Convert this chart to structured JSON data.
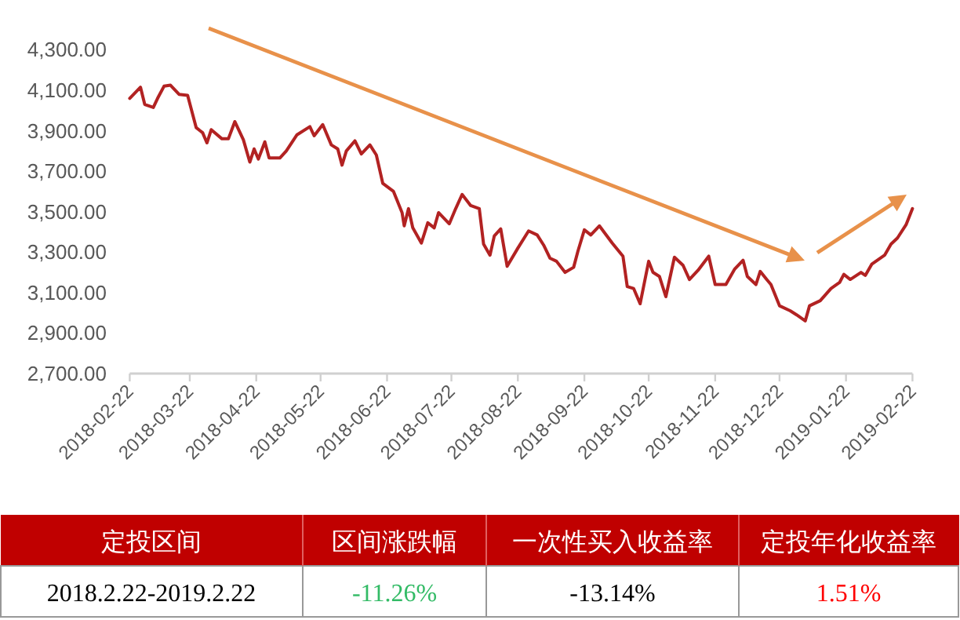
{
  "chart_data": {
    "type": "line",
    "x": [
      "2018-02-22",
      "2018-02-27",
      "2018-03-01",
      "2018-03-05",
      "2018-03-07",
      "2018-03-10",
      "2018-03-13",
      "2018-03-17",
      "2018-03-21",
      "2018-03-25",
      "2018-03-28",
      "2018-03-30",
      "2018-04-01",
      "2018-04-06",
      "2018-04-09",
      "2018-04-12",
      "2018-04-16",
      "2018-04-19",
      "2018-04-21",
      "2018-04-23",
      "2018-04-26",
      "2018-04-28",
      "2018-05-03",
      "2018-05-06",
      "2018-05-11",
      "2018-05-17",
      "2018-05-19",
      "2018-05-23",
      "2018-05-27",
      "2018-05-30",
      "2018-06-01",
      "2018-06-03",
      "2018-06-07",
      "2018-06-10",
      "2018-06-14",
      "2018-06-17",
      "2018-06-20",
      "2018-06-25",
      "2018-06-29",
      "2018-06-30",
      "2018-07-02",
      "2018-07-04",
      "2018-07-08",
      "2018-07-11",
      "2018-07-14",
      "2018-07-16",
      "2018-07-21",
      "2018-07-24",
      "2018-07-27",
      "2018-07-31",
      "2018-08-04",
      "2018-08-06",
      "2018-08-09",
      "2018-08-11",
      "2018-08-14",
      "2018-08-17",
      "2018-08-22",
      "2018-08-27",
      "2018-08-31",
      "2018-09-03",
      "2018-09-06",
      "2018-09-09",
      "2018-09-13",
      "2018-09-17",
      "2018-09-19",
      "2018-09-22",
      "2018-09-25",
      "2018-09-29",
      "2018-10-05",
      "2018-10-10",
      "2018-10-12",
      "2018-10-15",
      "2018-10-18",
      "2018-10-22",
      "2018-10-24",
      "2018-10-27",
      "2018-10-30",
      "2018-11-03",
      "2018-11-07",
      "2018-11-10",
      "2018-11-14",
      "2018-11-19",
      "2018-11-22",
      "2018-11-27",
      "2018-12-01",
      "2018-12-05",
      "2018-12-07",
      "2018-12-11",
      "2018-12-13",
      "2018-12-16",
      "2018-12-18",
      "2018-12-22",
      "2018-12-27",
      "2018-12-30",
      "2019-01-03",
      "2019-01-05",
      "2019-01-10",
      "2019-01-15",
      "2019-01-19",
      "2019-01-21",
      "2019-01-24",
      "2019-01-29",
      "2019-01-31",
      "2019-02-03",
      "2019-02-09",
      "2019-02-12",
      "2019-02-15",
      "2019-02-19",
      "2019-02-22"
    ],
    "series": [
      {
        "color": "#b22222",
        "values": [
          4060,
          4115,
          4030,
          4015,
          4060,
          4120,
          4125,
          4080,
          4075,
          3915,
          3890,
          3840,
          3905,
          3860,
          3860,
          3945,
          3855,
          3745,
          3810,
          3760,
          3845,
          3765,
          3765,
          3800,
          3880,
          3920,
          3875,
          3930,
          3830,
          3810,
          3730,
          3800,
          3850,
          3785,
          3830,
          3780,
          3640,
          3600,
          3495,
          3430,
          3515,
          3420,
          3345,
          3445,
          3420,
          3495,
          3440,
          3515,
          3585,
          3530,
          3515,
          3340,
          3285,
          3380,
          3415,
          3230,
          3320,
          3405,
          3385,
          3335,
          3270,
          3255,
          3200,
          3225,
          3305,
          3410,
          3385,
          3430,
          3345,
          3280,
          3130,
          3120,
          3045,
          3255,
          3200,
          3180,
          3080,
          3275,
          3235,
          3165,
          3210,
          3280,
          3140,
          3140,
          3215,
          3260,
          3180,
          3140,
          3205,
          3165,
          3140,
          3035,
          3010,
          2990,
          2960,
          3035,
          3060,
          3120,
          3150,
          3190,
          3165,
          3200,
          3185,
          3240,
          3285,
          3340,
          3370,
          3435,
          3515
        ]
      }
    ],
    "ylim": [
      2700,
      4300
    ],
    "yticks": [
      {
        "value": 2700,
        "label": "2,700.00"
      },
      {
        "value": 2900,
        "label": "2,900.00"
      },
      {
        "value": 3100,
        "label": "3,100.00"
      },
      {
        "value": 3300,
        "label": "3,300.00"
      },
      {
        "value": 3500,
        "label": "3,500.00"
      },
      {
        "value": 3700,
        "label": "3,700.00"
      },
      {
        "value": 3900,
        "label": "3,900.00"
      },
      {
        "value": 4100,
        "label": "4,100.00"
      },
      {
        "value": 4300,
        "label": "4,300.00"
      }
    ],
    "xlim": [
      "2018-02-22",
      "2019-02-22"
    ],
    "xticks": [
      {
        "value": "2018-02-22",
        "label": "2018-02-22"
      },
      {
        "value": "2018-03-22",
        "label": "2018-03-22"
      },
      {
        "value": "2018-04-22",
        "label": "2018-04-22"
      },
      {
        "value": "2018-05-22",
        "label": "2018-05-22"
      },
      {
        "value": "2018-06-22",
        "label": "2018-06-22"
      },
      {
        "value": "2018-07-22",
        "label": "2018-07-22"
      },
      {
        "value": "2018-08-22",
        "label": "2018-08-22"
      },
      {
        "value": "2018-09-22",
        "label": "2018-09-22"
      },
      {
        "value": "2018-10-22",
        "label": "2018-10-22"
      },
      {
        "value": "2018-11-22",
        "label": "2018-11-22"
      },
      {
        "value": "2018-12-22",
        "label": "2018-12-22"
      },
      {
        "value": "2019-01-22",
        "label": "2019-01-22"
      },
      {
        "value": "2019-02-22",
        "label": "2019-02-22"
      }
    ],
    "grid": false,
    "marker": "none",
    "line_style": "solid",
    "annotations": [
      "定投区间",
      "区间涨跌幅",
      "一次性买入收益率",
      "定投年化收益率",
      "2018.2.22-2019.2.22",
      "-11.26%",
      "-13.14%",
      "1.51%"
    ]
  }
}
